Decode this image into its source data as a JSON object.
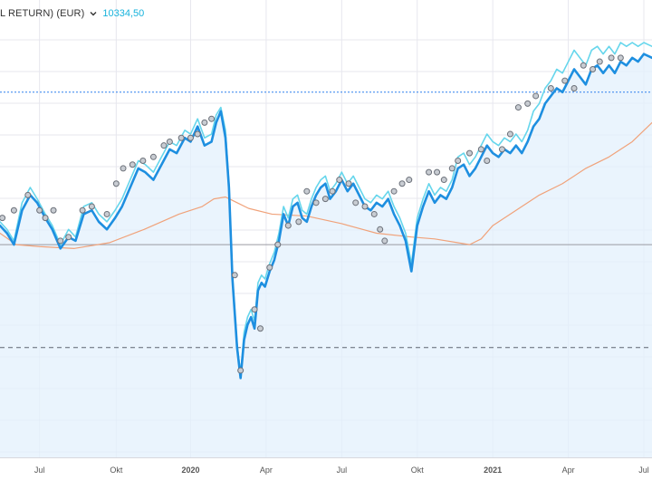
{
  "header": {
    "title": "L RETURN) (EUR)",
    "current_value": "10334,50"
  },
  "colors": {
    "main_line": "#1e8fe0",
    "secondary_line": "#66d6ec",
    "moving_average": "#f0a27a",
    "area_fill": "#e3f0fc",
    "grid": "#e7e7ee",
    "ref_line_dotted": "#2f80ed",
    "ref_line_solid": "#9a9aa2",
    "ref_line_dashed": "#5c6470",
    "current_value": "#17b3dc"
  },
  "chart_data": {
    "type": "line",
    "title": "L RETURN) (EUR)",
    "current_value_label": "10334,50",
    "x_ticks": [
      {
        "label": "Jul",
        "t": 14,
        "bold": false
      },
      {
        "label": "Okt",
        "t": 14.66,
        "bold": false
      },
      {
        "label": "2020",
        "t": 15.3,
        "bold": true
      },
      {
        "label": "Apr",
        "t": 15.95,
        "bold": false
      },
      {
        "label": "Jul",
        "t": 16.6,
        "bold": false
      },
      {
        "label": "Okt",
        "t": 17.25,
        "bold": false
      },
      {
        "label": "2021",
        "t": 17.9,
        "bold": true
      },
      {
        "label": "Apr",
        "t": 18.55,
        "bold": false
      },
      {
        "label": "Jul",
        "t": 19.2,
        "bold": false
      }
    ],
    "x_range": [
      13.66,
      19.27
    ],
    "y_range": [
      0,
      100
    ],
    "reference_lines": [
      {
        "name": "dotted",
        "value": 87
      },
      {
        "name": "solid",
        "value": 47
      },
      {
        "name": "dashed",
        "value": 20
      }
    ],
    "series": [
      {
        "name": "total-return",
        "role": "main",
        "x": [
          13.66,
          13.72,
          13.78,
          13.85,
          13.92,
          13.98,
          14.05,
          14.11,
          14.18,
          14.25,
          14.31,
          14.38,
          14.45,
          14.51,
          14.58,
          14.65,
          14.71,
          14.78,
          14.85,
          14.91,
          14.98,
          15.05,
          15.12,
          15.18,
          15.25,
          15.3,
          15.36,
          15.42,
          15.48,
          15.52,
          15.56,
          15.6,
          15.63,
          15.66,
          15.7,
          15.73,
          15.76,
          15.79,
          15.82,
          15.85,
          15.88,
          15.91,
          15.94,
          15.98,
          16.02,
          16.06,
          16.1,
          16.14,
          16.18,
          16.22,
          16.26,
          16.3,
          16.34,
          16.38,
          16.42,
          16.46,
          16.5,
          16.55,
          16.6,
          16.65,
          16.7,
          16.75,
          16.8,
          16.85,
          16.9,
          16.95,
          17,
          17.05,
          17.1,
          17.15,
          17.2,
          17.25,
          17.3,
          17.35,
          17.4,
          17.45,
          17.5,
          17.55,
          17.6,
          17.65,
          17.7,
          17.75,
          17.8,
          17.85,
          17.9,
          17.95,
          18,
          18.05,
          18.1,
          18.15,
          18.2,
          18.25,
          18.3,
          18.35,
          18.4,
          18.45,
          18.5,
          18.55,
          18.6,
          18.65,
          18.7,
          18.75,
          18.8,
          18.85,
          18.9,
          18.95,
          19,
          19.05,
          19.1,
          19.15,
          19.2,
          19.27
        ],
        "values": [
          52,
          50,
          47,
          56,
          60,
          58,
          54,
          51,
          46,
          49,
          48,
          55,
          56,
          53,
          51,
          54,
          57,
          62,
          67,
          66,
          64,
          68,
          72,
          71,
          75,
          74,
          78,
          73,
          74,
          79,
          82,
          75,
          62,
          38,
          20,
          12,
          22,
          26,
          28,
          25,
          35,
          37,
          36,
          40,
          43,
          48,
          55,
          52,
          57,
          58,
          54,
          53,
          57,
          60,
          62,
          63,
          59,
          61,
          64,
          61,
          63,
          60,
          57,
          56,
          58,
          57,
          59,
          55,
          52,
          48,
          40,
          52,
          57,
          61,
          58,
          60,
          59,
          62,
          67,
          68,
          65,
          67,
          70,
          73,
          71,
          70,
          72,
          71,
          73,
          71,
          74,
          78,
          80,
          84,
          86,
          88,
          87,
          90,
          93,
          91,
          89,
          93,
          94,
          92,
          94,
          92,
          95,
          94,
          96,
          95,
          97,
          96
        ],
        "markers": [
          [
            13.68,
            54
          ],
          [
            13.78,
            56
          ],
          [
            13.9,
            60
          ],
          [
            14.0,
            56
          ],
          [
            14.05,
            54
          ],
          [
            14.12,
            56
          ],
          [
            14.18,
            48
          ],
          [
            14.25,
            49
          ],
          [
            14.37,
            56
          ],
          [
            14.45,
            57
          ],
          [
            14.58,
            55
          ],
          [
            14.66,
            63
          ],
          [
            14.72,
            67
          ],
          [
            14.8,
            68
          ],
          [
            14.89,
            69
          ],
          [
            14.98,
            70
          ],
          [
            15.07,
            73
          ],
          [
            15.12,
            74
          ],
          [
            15.22,
            75
          ],
          [
            15.3,
            75
          ],
          [
            15.36,
            76
          ],
          [
            15.42,
            79
          ],
          [
            15.48,
            80
          ],
          [
            15.68,
            39
          ],
          [
            15.73,
            14
          ],
          [
            15.85,
            30
          ],
          [
            15.9,
            25
          ],
          [
            15.98,
            41
          ],
          [
            16.05,
            47
          ],
          [
            16.14,
            52
          ],
          [
            16.23,
            53
          ],
          [
            16.3,
            61
          ],
          [
            16.38,
            58
          ],
          [
            16.46,
            59
          ],
          [
            16.52,
            61
          ],
          [
            16.58,
            64
          ],
          [
            16.66,
            63
          ],
          [
            16.72,
            58
          ],
          [
            16.8,
            57
          ],
          [
            16.88,
            55
          ],
          [
            16.93,
            51
          ],
          [
            16.97,
            48
          ],
          [
            17.05,
            61
          ],
          [
            17.12,
            63
          ],
          [
            17.18,
            64
          ],
          [
            17.35,
            66
          ],
          [
            17.42,
            66
          ],
          [
            17.48,
            64
          ],
          [
            17.55,
            67
          ],
          [
            17.6,
            69
          ],
          [
            17.7,
            71
          ],
          [
            17.8,
            72
          ],
          [
            17.85,
            69
          ],
          [
            17.98,
            72
          ],
          [
            18.05,
            76
          ],
          [
            18.12,
            83
          ],
          [
            18.2,
            84
          ],
          [
            18.27,
            86
          ],
          [
            18.4,
            88
          ],
          [
            18.52,
            90
          ],
          [
            18.6,
            88
          ],
          [
            18.68,
            94
          ],
          [
            18.76,
            93
          ],
          [
            18.82,
            95
          ],
          [
            18.92,
            96
          ],
          [
            19.0,
            96
          ]
        ]
      },
      {
        "name": "price-index",
        "role": "secondary",
        "x": [
          13.66,
          13.72,
          13.78,
          13.85,
          13.92,
          13.98,
          14.05,
          14.11,
          14.18,
          14.25,
          14.31,
          14.38,
          14.45,
          14.51,
          14.58,
          14.65,
          14.71,
          14.78,
          14.85,
          14.91,
          14.98,
          15.05,
          15.12,
          15.18,
          15.25,
          15.3,
          15.36,
          15.42,
          15.48,
          15.52,
          15.56,
          15.6,
          15.63,
          15.66,
          15.7,
          15.73,
          15.76,
          15.79,
          15.82,
          15.85,
          15.88,
          15.91,
          15.94,
          15.98,
          16.02,
          16.06,
          16.1,
          16.14,
          16.18,
          16.22,
          16.26,
          16.3,
          16.34,
          16.38,
          16.42,
          16.46,
          16.5,
          16.55,
          16.6,
          16.65,
          16.7,
          16.75,
          16.8,
          16.85,
          16.9,
          16.95,
          17,
          17.05,
          17.1,
          17.15,
          17.2,
          17.25,
          17.3,
          17.35,
          17.4,
          17.45,
          17.5,
          17.55,
          17.6,
          17.65,
          17.7,
          17.75,
          17.8,
          17.85,
          17.9,
          17.95,
          18,
          18.05,
          18.1,
          18.15,
          18.2,
          18.25,
          18.3,
          18.35,
          18.4,
          18.45,
          18.5,
          18.55,
          18.6,
          18.65,
          18.7,
          18.75,
          18.8,
          18.85,
          18.9,
          18.95,
          19,
          19.05,
          19.1,
          19.15,
          19.2,
          19.27
        ],
        "values": [
          53,
          51,
          48,
          58,
          62,
          59,
          55,
          52,
          47,
          51,
          49,
          57,
          58,
          55,
          53,
          56,
          59,
          64,
          69,
          68,
          66,
          70,
          74,
          73,
          77,
          76,
          80,
          75,
          76,
          81,
          83,
          77,
          63,
          39,
          21,
          13,
          24,
          28,
          30,
          27,
          37,
          39,
          38,
          42,
          45,
          50,
          57,
          54,
          59,
          60,
          56,
          55,
          59,
          62,
          64,
          65,
          61,
          63,
          66,
          63,
          65,
          62,
          59,
          58,
          60,
          59,
          61,
          57,
          54,
          50,
          42,
          54,
          59,
          63,
          60,
          62,
          61,
          64,
          70,
          71,
          68,
          70,
          73,
          76,
          74,
          73,
          75,
          74,
          76,
          74,
          77,
          82,
          84,
          88,
          90,
          93,
          92,
          95,
          98,
          96,
          94,
          98,
          99,
          97,
          99,
          97,
          100,
          99,
          100,
          99,
          100,
          99
        ]
      },
      {
        "name": "moving-average",
        "role": "average",
        "x": [
          13.66,
          13.8,
          14.0,
          14.3,
          14.6,
          14.9,
          15.2,
          15.4,
          15.5,
          15.6,
          15.7,
          15.8,
          16.0,
          16.3,
          16.6,
          16.9,
          17.2,
          17.4,
          17.6,
          17.7,
          17.8,
          17.9,
          18.1,
          18.3,
          18.5,
          18.7,
          18.9,
          19.1,
          19.27
        ],
        "values": [
          50,
          47,
          46.5,
          46,
          47.5,
          51,
          55,
          57,
          59,
          59.5,
          58,
          56.5,
          55,
          54.5,
          52.5,
          50,
          49,
          48.5,
          47.5,
          47,
          48.5,
          52,
          56,
          60,
          63,
          67,
          70,
          74,
          79
        ]
      }
    ]
  }
}
